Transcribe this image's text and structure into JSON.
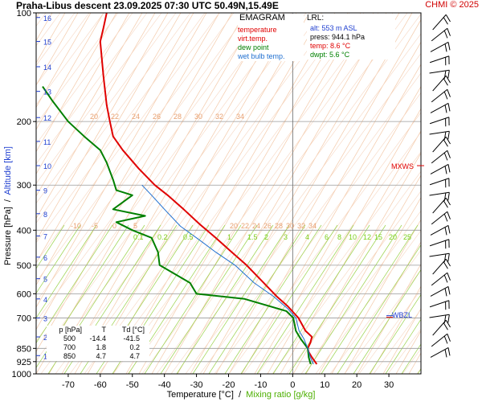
{
  "header": {
    "title": "Praha-Libus   descent   23.09.2025 07:30 UTC  50.49N,15.49E",
    "credit": "CHMI © 2025"
  },
  "legend": {
    "title": "EMAGRAM",
    "items": [
      {
        "label": "temperature",
        "color": "#e00000"
      },
      {
        "label": "virt.temp.",
        "color": "#e00000"
      },
      {
        "label": "dew point",
        "color": "#008000"
      },
      {
        "label": "wet bulb temp.",
        "color": "#1f6fd0"
      }
    ]
  },
  "lrl": {
    "title": "LRL:",
    "alt": "alt: 553 m ASL",
    "press": "press: 944.1 hPa",
    "temp": "temp: 8.6 °C",
    "dwpt": "dwpt: 5.6 °C"
  },
  "markers": {
    "mxws": "MXWS",
    "wbzl": "WBZL"
  },
  "table": {
    "headers": [
      "p [hPa]",
      "T",
      "Td [°C]"
    ],
    "rows": [
      [
        "500",
        "-14.4",
        "-41.5"
      ],
      [
        "700",
        "1.8",
        "0.2"
      ],
      [
        "850",
        "4.7",
        "4.7"
      ]
    ]
  },
  "chart_data": {
    "type": "line",
    "title": "Praha-Libus   descent   23.09.2025 07:30 UTC  50.49N,15.49E",
    "xlabel": "Temperature [°C]",
    "xlabel2": "Mixing ratio [g/kg]",
    "ylabel": "Pressure [hPa]",
    "ylabel2": "Altitude [km]",
    "xlim": [
      -80,
      40
    ],
    "ylim": [
      1000,
      100
    ],
    "y_scale": "log",
    "x_ticks": [
      -70,
      -60,
      -50,
      -40,
      -30,
      -20,
      -10,
      0,
      10,
      20,
      30
    ],
    "y_ticks": [
      100,
      200,
      300,
      400,
      500,
      600,
      700,
      850,
      925,
      1000
    ],
    "altitude_ticks": [
      {
        "km": 1,
        "p": 890
      },
      {
        "km": 2,
        "p": 790
      },
      {
        "km": 3,
        "p": 700
      },
      {
        "km": 4,
        "p": 620
      },
      {
        "km": 5,
        "p": 545
      },
      {
        "km": 6,
        "p": 475
      },
      {
        "km": 7,
        "p": 415
      },
      {
        "km": 8,
        "p": 360
      },
      {
        "km": 9,
        "p": 310
      },
      {
        "km": 10,
        "p": 265
      },
      {
        "km": 11,
        "p": 227
      },
      {
        "km": 12,
        "p": 195
      },
      {
        "km": 13,
        "p": 165
      },
      {
        "km": 14,
        "p": 141
      },
      {
        "km": 15,
        "p": 120
      },
      {
        "km": 16,
        "p": 103
      }
    ],
    "mixing_ratio_labels": [
      "0.1",
      "0.2",
      "0.5",
      "1",
      "1.5",
      "2",
      "3",
      "4",
      "6",
      "8",
      "10",
      "12",
      "15",
      "20",
      "25"
    ],
    "adiabat_labels_upper": [
      "20",
      "22",
      "24",
      "26",
      "28",
      "30",
      "32",
      "34"
    ],
    "adiabat_labels_lower": [
      "-10",
      "-5",
      "0",
      "5"
    ],
    "adiabat_labels_middle": [
      "20",
      "22",
      "24",
      "26",
      "28",
      "30",
      "32",
      "34"
    ],
    "grid": true,
    "series": [
      {
        "name": "temperature",
        "color": "#e00000",
        "points": [
          [
            7.5,
            940
          ],
          [
            6.0,
            900
          ],
          [
            5.0,
            870
          ],
          [
            4.7,
            850
          ],
          [
            5.5,
            820
          ],
          [
            6.0,
            790
          ],
          [
            4.0,
            760
          ],
          [
            1.8,
            700
          ],
          [
            0.5,
            680
          ],
          [
            -1.5,
            650
          ],
          [
            -5,
            610
          ],
          [
            -9,
            560
          ],
          [
            -14.4,
            500
          ],
          [
            -19,
            460
          ],
          [
            -24,
            420
          ],
          [
            -29,
            385
          ],
          [
            -34,
            350
          ],
          [
            -39,
            320
          ],
          [
            -43,
            300
          ],
          [
            -48,
            270
          ],
          [
            -53,
            240
          ],
          [
            -56,
            220
          ],
          [
            -57,
            200
          ],
          [
            -58,
            180
          ],
          [
            -59,
            150
          ],
          [
            -60,
            120
          ],
          [
            -59,
            110
          ],
          [
            -58,
            100
          ]
        ]
      },
      {
        "name": "dew point",
        "color": "#008000",
        "points": [
          [
            5.6,
            940
          ],
          [
            5.0,
            900
          ],
          [
            4.7,
            850
          ],
          [
            2.5,
            800
          ],
          [
            1.0,
            760
          ],
          [
            0.2,
            700
          ],
          [
            -2,
            670
          ],
          [
            -15,
            620
          ],
          [
            -30,
            600
          ],
          [
            -32,
            560
          ],
          [
            -41.5,
            500
          ],
          [
            -42,
            460
          ],
          [
            -44,
            420
          ],
          [
            -50,
            400
          ],
          [
            -55,
            380
          ],
          [
            -46,
            365
          ],
          [
            -56,
            350
          ],
          [
            -50,
            320
          ],
          [
            -55,
            310
          ],
          [
            -56,
            290
          ],
          [
            -58,
            260
          ],
          [
            -60,
            240
          ],
          [
            -65,
            220
          ],
          [
            -70,
            200
          ],
          [
            -75,
            175
          ],
          [
            -78,
            160
          ]
        ]
      },
      {
        "name": "wet bulb temp.",
        "color": "#1f6fd0",
        "points": [
          [
            6.5,
            940
          ],
          [
            5.5,
            900
          ],
          [
            4.7,
            850
          ],
          [
            3.5,
            800
          ],
          [
            2.0,
            760
          ],
          [
            1.0,
            700
          ],
          [
            -1.5,
            660
          ],
          [
            -6,
            610
          ],
          [
            -12,
            560
          ],
          [
            -18,
            500
          ],
          [
            -24,
            460
          ],
          [
            -30,
            420
          ],
          [
            -35,
            390
          ],
          [
            -40,
            350
          ],
          [
            -44,
            320
          ],
          [
            -47,
            300
          ]
        ]
      }
    ],
    "annotations": {
      "mxws_p": 265,
      "wbzl_p": 690,
      "lrl_x": 0
    }
  }
}
